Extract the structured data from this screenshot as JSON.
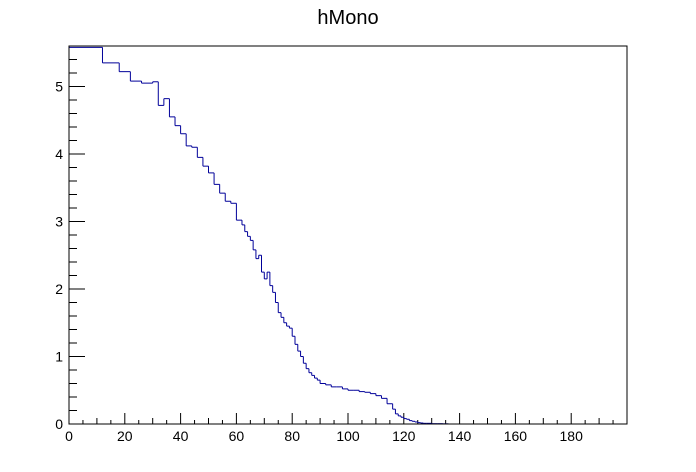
{
  "chart_data": {
    "type": "histogram",
    "title": "hMono",
    "xlabel": "",
    "ylabel": "",
    "xlim": [
      0,
      200
    ],
    "ylim": [
      0,
      5.6
    ],
    "grid": false,
    "x_ticks": [
      0,
      20,
      40,
      60,
      80,
      100,
      120,
      140,
      160,
      180
    ],
    "y_ticks": [
      0,
      1,
      2,
      3,
      4,
      5
    ],
    "line_color": "#000099",
    "bin_edges": [
      0,
      12,
      18,
      22,
      26,
      30,
      32,
      34,
      36,
      38,
      40,
      42,
      44,
      46,
      48,
      50,
      52,
      54,
      56,
      58,
      60,
      62,
      63,
      64,
      65,
      66,
      67,
      68,
      69,
      70,
      71,
      72,
      73,
      74,
      75,
      76,
      77,
      78,
      79,
      80,
      81,
      82,
      83,
      84,
      85,
      86,
      87,
      88,
      89,
      90,
      92,
      94,
      96,
      98,
      100,
      102,
      104,
      106,
      108,
      110,
      112,
      114,
      116,
      117,
      118,
      119,
      120,
      121,
      122,
      123,
      124,
      125,
      126,
      127,
      128,
      130,
      132,
      134,
      136,
      200
    ],
    "counts": [
      5.58,
      5.35,
      5.22,
      5.08,
      5.05,
      5.07,
      4.72,
      4.82,
      4.55,
      4.42,
      4.3,
      4.12,
      4.1,
      3.95,
      3.82,
      3.72,
      3.55,
      3.42,
      3.3,
      3.27,
      3.02,
      2.95,
      2.85,
      2.78,
      2.72,
      2.58,
      2.45,
      2.5,
      2.25,
      2.15,
      2.25,
      2.05,
      1.95,
      1.8,
      1.65,
      1.58,
      1.5,
      1.45,
      1.42,
      1.3,
      1.18,
      1.08,
      1.0,
      0.9,
      0.82,
      0.76,
      0.72,
      0.68,
      0.65,
      0.6,
      0.58,
      0.55,
      0.55,
      0.52,
      0.5,
      0.5,
      0.48,
      0.47,
      0.45,
      0.42,
      0.38,
      0.3,
      0.22,
      0.15,
      0.12,
      0.1,
      0.08,
      0.07,
      0.05,
      0.04,
      0.03,
      0.02,
      0.015,
      0.01,
      0.01,
      0.005,
      0.005,
      0.003,
      0
    ]
  }
}
